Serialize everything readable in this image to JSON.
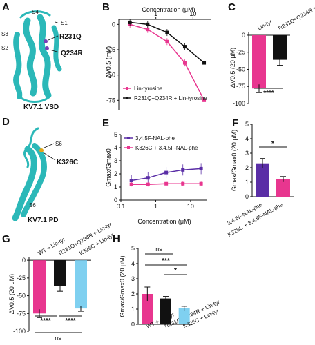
{
  "panels": {
    "A": {
      "label": "A",
      "caption": "KV7.1 VSD",
      "annotations": [
        "S4",
        "S1",
        "S3",
        "S2",
        "R231Q",
        "Q234R"
      ]
    },
    "B": {
      "label": "B"
    },
    "C": {
      "label": "C"
    },
    "D": {
      "label": "D",
      "caption": "KV7.1 PD",
      "annotations": [
        "S6",
        "K326C",
        "S6"
      ]
    },
    "E": {
      "label": "E"
    },
    "F": {
      "label": "F"
    },
    "G": {
      "label": "G"
    },
    "H": {
      "label": "H"
    }
  },
  "colors": {
    "pink": "#e8368f",
    "black": "#111111",
    "lightblue": "#7fd0f0",
    "purple": "#5a2ea6",
    "protein": "#2bb8b8"
  },
  "chart_data": [
    {
      "id": "B",
      "type": "line",
      "title": "Concentration (μM)",
      "xlabel": "Concentration (μM)",
      "ylabel": "ΔV0.5 (mV)",
      "xscale": "log",
      "xlim": [
        0.1,
        30
      ],
      "ylim": [
        -85,
        5
      ],
      "xticks": [
        "1",
        "10"
      ],
      "yticks": [
        "0",
        "-25",
        "-50",
        "-75"
      ],
      "legend": [
        "Lin-tyrosine",
        "R231Q+Q234R + Lin-tyrosine"
      ],
      "series": [
        {
          "name": "Lin-tyrosine",
          "color": "#e8368f",
          "x": [
            0.2,
            0.6,
            2,
            6,
            20
          ],
          "y": [
            0,
            -5,
            -17,
            -38,
            -75
          ]
        },
        {
          "name": "R231Q+Q234R + Lin-tyrosine",
          "color": "#111111",
          "x": [
            0.2,
            0.6,
            2,
            6,
            20
          ],
          "y": [
            2,
            0,
            -8,
            -22,
            -38
          ]
        }
      ]
    },
    {
      "id": "C",
      "type": "bar",
      "ylabel": "ΔV0.5 (20 μM)",
      "ylim": [
        -100,
        5
      ],
      "categories": [
        "Lin-tyr",
        "R231Q+Q234R + Lin-tyr"
      ],
      "yticks": [
        "0",
        "-25",
        "-50",
        "-75",
        "-100"
      ],
      "values": [
        -78,
        -36
      ],
      "colors": [
        "#e8368f",
        "#111111"
      ],
      "significance": "****"
    },
    {
      "id": "E",
      "type": "line",
      "xlabel": "Concentration (μM)",
      "ylabel": "Gmax/Gmax0",
      "xscale": "log",
      "xlim": [
        0.1,
        30
      ],
      "ylim": [
        0,
        5
      ],
      "xticks": [
        "0.1",
        "1",
        "10"
      ],
      "yticks": [
        "0",
        "1",
        "2",
        "3",
        "4",
        "5"
      ],
      "legend": [
        "3,4,5F-NAL-phe",
        "K326C + 3,4,5F-NAL-phe"
      ],
      "series": [
        {
          "name": "3,4,5F-NAL-phe",
          "color": "#5a2ea6",
          "x": [
            0.2,
            0.6,
            2,
            6,
            20
          ],
          "y": [
            1.5,
            1.7,
            2.1,
            2.3,
            2.4
          ]
        },
        {
          "name": "K326C + 3,4,5F-NAL-phe",
          "color": "#e8368f",
          "x": [
            0.2,
            0.6,
            2,
            6,
            20
          ],
          "y": [
            1.2,
            1.2,
            1.25,
            1.25,
            1.25
          ]
        }
      ]
    },
    {
      "id": "F",
      "type": "bar",
      "ylabel": "Gmax/Gmax0 (20 μM)",
      "ylim": [
        0,
        5
      ],
      "yticks": [
        "0",
        "1",
        "2",
        "3",
        "4",
        "5"
      ],
      "categories": [
        "3,4,5F-NAL-phe",
        "K326C + 3,4,5F-NAL-phe"
      ],
      "values": [
        2.3,
        1.2
      ],
      "colors": [
        "#5a2ea6",
        "#e8368f"
      ],
      "significance": "*"
    },
    {
      "id": "G",
      "type": "bar",
      "ylabel": "ΔV0.5 (20 μM)",
      "ylim": [
        -100,
        5
      ],
      "yticks": [
        "0",
        "-25",
        "-50",
        "-75",
        "-100"
      ],
      "categories": [
        "WT + Lin-tyr",
        "R231Q+Q234R + Lin-tyr",
        "K326C + Lin-tyr"
      ],
      "values": [
        -75,
        -36,
        -68
      ],
      "colors": [
        "#e8368f",
        "#111111",
        "#7fd0f0"
      ],
      "significance": [
        "****",
        "****",
        "ns"
      ]
    },
    {
      "id": "H",
      "type": "bar",
      "ylabel": "Gmax/Gmax0 (20 μM)",
      "ylim": [
        0,
        5
      ],
      "yticks": [
        "0",
        "1",
        "2",
        "3",
        "4",
        "5"
      ],
      "categories": [
        "WT + Lin-tyr",
        "R231Q+Q234R + Lin-tyr",
        "K326C + Lin-tyr"
      ],
      "values": [
        2.0,
        1.7,
        1.05
      ],
      "colors": [
        "#e8368f",
        "#111111",
        "#7fd0f0"
      ],
      "significance": [
        "ns",
        "***",
        "*"
      ]
    }
  ]
}
